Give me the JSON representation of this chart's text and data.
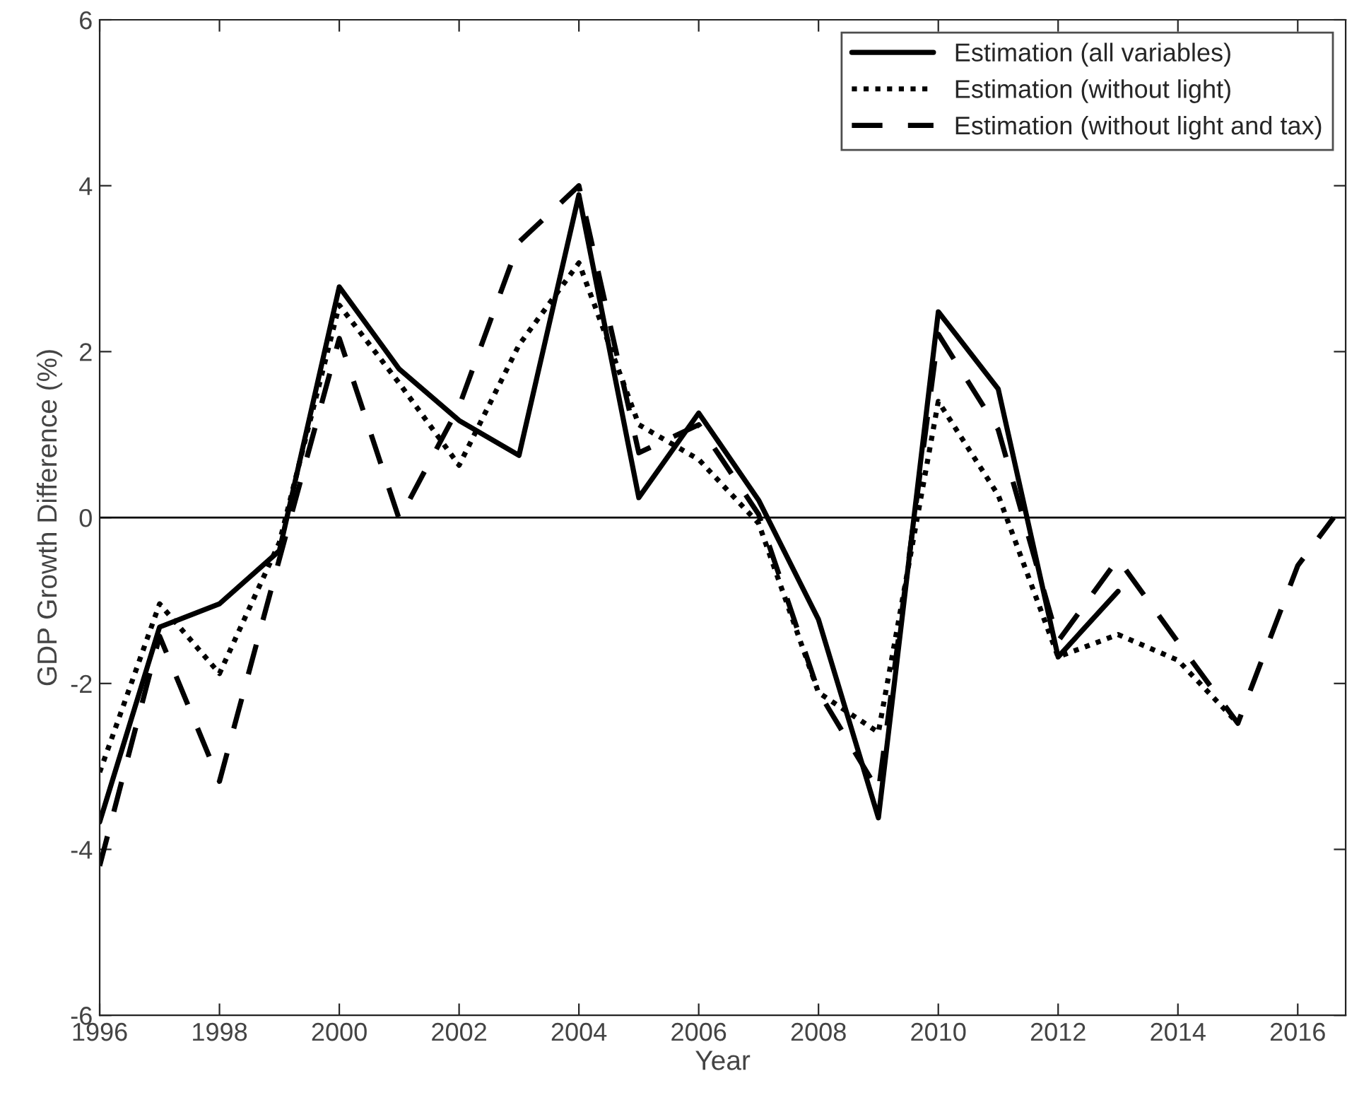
{
  "chart_data": {
    "type": "line",
    "xlabel": "Year",
    "ylabel": "GDP Growth Difference (%)",
    "x": [
      1996,
      1997,
      1998,
      1999,
      2000,
      2001,
      2002,
      2003,
      2004,
      2005,
      2006,
      2007,
      2008,
      2009,
      2010,
      2011,
      2012,
      2013,
      2014,
      2015,
      2016,
      2016.6
    ],
    "series": [
      {
        "name": "Estimation (all variables)",
        "color": "#000000",
        "line_style": "solid",
        "values": [
          -3.67,
          -1.32,
          -1.04,
          -0.4,
          2.78,
          1.79,
          1.17,
          0.75,
          3.89,
          0.24,
          1.26,
          0.21,
          -1.23,
          -3.62,
          2.48,
          1.55,
          -1.68,
          -0.89,
          null,
          null,
          null,
          null
        ]
      },
      {
        "name": "Estimation (without light)",
        "color": "#000000",
        "line_style": "dotted",
        "values": [
          -3.07,
          -1.04,
          -1.88,
          -0.3,
          2.56,
          1.62,
          0.63,
          2.08,
          3.07,
          1.12,
          0.7,
          -0.07,
          -2.11,
          -2.59,
          1.4,
          0.27,
          -1.68,
          -1.41,
          -1.72,
          -2.48,
          null,
          null
        ]
      },
      {
        "name": "Estimation (without light and tax)",
        "color": "#000000",
        "line_style": "dashed",
        "values": [
          -4.2,
          -1.43,
          -3.18,
          -0.5,
          2.16,
          -0.02,
          1.34,
          3.32,
          4.0,
          0.78,
          1.12,
          0.04,
          -2.1,
          -3.3,
          2.21,
          1.06,
          -1.49,
          -0.5,
          -1.5,
          -2.48,
          -0.58,
          0
        ]
      }
    ],
    "ref_lines": [
      {
        "axis": "y",
        "value": 0,
        "color": "#000000",
        "line_style": "solid"
      }
    ],
    "xlim": [
      1996,
      2016.8
    ],
    "xticks": [
      1996,
      1998,
      2000,
      2002,
      2004,
      2006,
      2008,
      2010,
      2012,
      2014,
      2016
    ],
    "ylim": [
      -6,
      6
    ],
    "yticks": [
      -6,
      -4,
      -2,
      0,
      2,
      4,
      6
    ],
    "legend": "top right",
    "grid": false,
    "marker": "none"
  }
}
